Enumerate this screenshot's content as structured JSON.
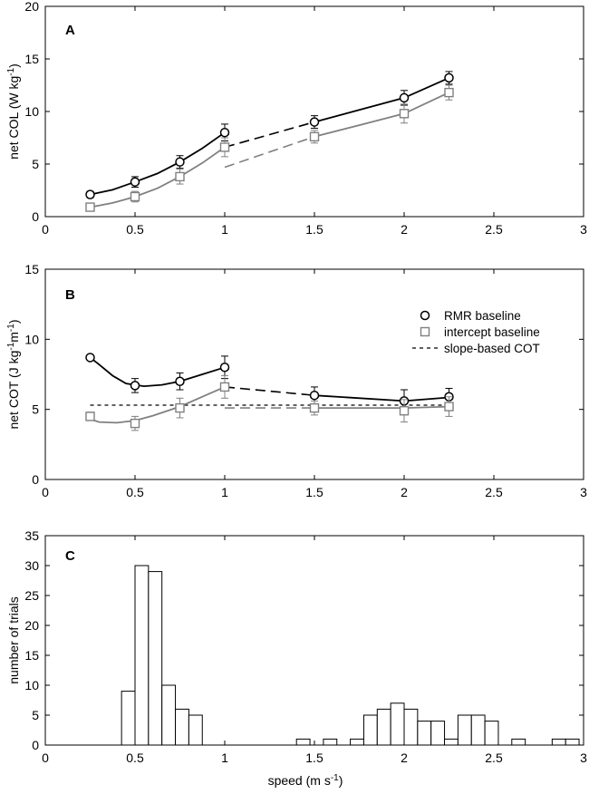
{
  "chart_data": [
    {
      "panel": "A",
      "type": "line",
      "ylabel": "net COL (W kg",
      "ylabel_sup": "-1",
      "ylabel_end": ")",
      "xlim": [
        0,
        3
      ],
      "ylim": [
        0,
        20
      ],
      "xticks": [
        0,
        0.5,
        1,
        1.5,
        2,
        2.5,
        3
      ],
      "xtick_labels": [
        "0",
        "0.5",
        "1",
        "1.5",
        "2",
        "2.5",
        "3"
      ],
      "yticks": [
        0,
        5,
        10,
        15,
        20
      ],
      "ytick_labels": [
        "0",
        "5",
        "10",
        "15",
        "20"
      ],
      "series": [
        {
          "name": "RMR baseline",
          "marker": "circle",
          "color": "#000000",
          "x": [
            0.25,
            0.5,
            0.75,
            1.0,
            1.5,
            2.0,
            2.25
          ],
          "y": [
            2.1,
            3.3,
            5.2,
            8.0,
            9.0,
            11.3,
            13.2
          ],
          "err": [
            0.3,
            0.5,
            0.6,
            0.8,
            0.6,
            0.7,
            0.6
          ],
          "fit_low": [
            [
              0.25,
              2.1
            ],
            [
              0.375,
              2.55
            ],
            [
              0.5,
              3.3
            ],
            [
              0.625,
              4.1
            ],
            [
              0.75,
              5.2
            ],
            [
              0.875,
              6.5
            ],
            [
              1.0,
              8.0
            ]
          ],
          "fit_high": [
            [
              1.5,
              9.0
            ],
            [
              1.75,
              10.15
            ],
            [
              2.0,
              11.3
            ],
            [
              2.25,
              13.2
            ]
          ],
          "dashed_link": [
            [
              1.0,
              6.6
            ],
            [
              1.5,
              9.0
            ]
          ]
        },
        {
          "name": "intercept baseline",
          "marker": "square",
          "color": "#808080",
          "x": [
            0.25,
            0.5,
            0.75,
            1.0,
            1.5,
            2.0,
            2.25
          ],
          "y": [
            0.9,
            1.9,
            3.8,
            6.6,
            7.6,
            9.8,
            11.8
          ],
          "err": [
            0.3,
            0.5,
            0.7,
            0.9,
            0.6,
            0.9,
            0.7
          ],
          "fit_low": [
            [
              0.25,
              0.9
            ],
            [
              0.375,
              1.3
            ],
            [
              0.5,
              1.9
            ],
            [
              0.625,
              2.7
            ],
            [
              0.75,
              3.8
            ],
            [
              0.875,
              5.1
            ],
            [
              1.0,
              6.6
            ]
          ],
          "fit_high": [
            [
              1.5,
              7.6
            ],
            [
              1.75,
              8.7
            ],
            [
              2.0,
              9.8
            ],
            [
              2.25,
              11.8
            ]
          ],
          "dashed_link": [
            [
              1.0,
              4.7
            ],
            [
              1.5,
              7.6
            ]
          ]
        }
      ]
    },
    {
      "panel": "B",
      "type": "line",
      "ylabel": "net COT (J kg",
      "ylabel_sup": "-1",
      "ylabel_mid": "m",
      "ylabel_sup2": "-1",
      "ylabel_end": ")",
      "xlim": [
        0,
        3
      ],
      "ylim": [
        0,
        15
      ],
      "xticks": [
        0,
        0.5,
        1,
        1.5,
        2,
        2.5,
        3
      ],
      "xtick_labels": [
        "0",
        "0.5",
        "1",
        "1.5",
        "2",
        "2.5",
        "3"
      ],
      "yticks": [
        0,
        5,
        10,
        15
      ],
      "ytick_labels": [
        "0",
        "5",
        "10",
        "15"
      ],
      "legend": {
        "entries": [
          {
            "label": "RMR baseline",
            "marker": "circle"
          },
          {
            "label": "intercept baseline",
            "marker": "square"
          },
          {
            "label": "slope-based COT",
            "marker": "dashed"
          }
        ]
      },
      "reference_line": {
        "name": "slope-based COT",
        "y": 5.3,
        "x": [
          0.25,
          2.25
        ]
      },
      "series": [
        {
          "name": "RMR baseline",
          "marker": "circle",
          "color": "#000000",
          "x": [
            0.25,
            0.5,
            0.75,
            1.0,
            1.5,
            2.0,
            2.25
          ],
          "y": [
            8.7,
            6.7,
            7.0,
            8.0,
            6.0,
            5.6,
            5.9
          ],
          "err": [
            0.2,
            0.5,
            0.6,
            0.8,
            0.6,
            0.8,
            0.6
          ],
          "fit_low": [
            [
              0.25,
              8.7
            ],
            [
              0.3,
              8.2
            ],
            [
              0.375,
              7.4
            ],
            [
              0.45,
              6.85
            ],
            [
              0.55,
              6.65
            ],
            [
              0.65,
              6.75
            ],
            [
              0.75,
              7.0
            ],
            [
              0.875,
              7.5
            ],
            [
              1.0,
              8.0
            ]
          ],
          "fit_high": [
            [
              1.5,
              6.0
            ],
            [
              2.0,
              5.6
            ],
            [
              2.25,
              5.85
            ]
          ],
          "dashed_link": [
            [
              1.0,
              6.6
            ],
            [
              1.5,
              6.0
            ]
          ]
        },
        {
          "name": "intercept baseline",
          "marker": "square",
          "color": "#808080",
          "x": [
            0.25,
            0.5,
            0.75,
            1.0,
            1.5,
            2.0,
            2.25
          ],
          "y": [
            4.5,
            4.0,
            5.1,
            6.6,
            5.1,
            4.9,
            5.2
          ],
          "err": [
            0.3,
            0.5,
            0.7,
            0.8,
            0.5,
            0.8,
            0.7
          ],
          "fit_low": [
            [
              0.25,
              4.3
            ],
            [
              0.3,
              4.1
            ],
            [
              0.4,
              4.05
            ],
            [
              0.5,
              4.2
            ],
            [
              0.6,
              4.55
            ],
            [
              0.75,
              5.2
            ],
            [
              0.875,
              5.9
            ],
            [
              1.0,
              6.6
            ]
          ],
          "fit_high": [
            [
              1.5,
              5.1
            ],
            [
              2.0,
              5.1
            ],
            [
              2.25,
              5.2
            ]
          ],
          "dashed_link": [
            [
              1.0,
              5.1
            ],
            [
              1.5,
              5.1
            ]
          ]
        }
      ]
    },
    {
      "panel": "C",
      "type": "bar",
      "xlabel": "speed (m s",
      "xlabel_sup": "-1",
      "xlabel_end": ")",
      "ylabel": "number of trials",
      "xlim": [
        0,
        3
      ],
      "ylim": [
        0,
        35
      ],
      "xticks": [
        0,
        0.5,
        1,
        1.5,
        2,
        2.5,
        3
      ],
      "xtick_labels": [
        "0",
        "0.5",
        "1",
        "1.5",
        "2",
        "2.5",
        "3"
      ],
      "yticks": [
        0,
        5,
        10,
        15,
        20,
        25,
        30,
        35
      ],
      "ytick_labels": [
        "0",
        "5",
        "10",
        "15",
        "20",
        "25",
        "30",
        "35"
      ],
      "bin_width": 0.075,
      "bins": [
        {
          "start": 0.425,
          "count": 9
        },
        {
          "start": 0.5,
          "count": 30
        },
        {
          "start": 0.575,
          "count": 29
        },
        {
          "start": 0.65,
          "count": 10
        },
        {
          "start": 0.725,
          "count": 6
        },
        {
          "start": 0.8,
          "count": 5
        },
        {
          "start": 1.4,
          "count": 1
        },
        {
          "start": 1.55,
          "count": 1
        },
        {
          "start": 1.7,
          "count": 1
        },
        {
          "start": 1.775,
          "count": 5
        },
        {
          "start": 1.85,
          "count": 6
        },
        {
          "start": 1.925,
          "count": 7
        },
        {
          "start": 2.0,
          "count": 6
        },
        {
          "start": 2.075,
          "count": 4
        },
        {
          "start": 2.15,
          "count": 4
        },
        {
          "start": 2.225,
          "count": 1
        },
        {
          "start": 2.3,
          "count": 5
        },
        {
          "start": 2.375,
          "count": 5
        },
        {
          "start": 2.45,
          "count": 4
        },
        {
          "start": 2.6,
          "count": 1
        },
        {
          "start": 2.825,
          "count": 1
        },
        {
          "start": 2.9,
          "count": 1
        }
      ]
    }
  ]
}
